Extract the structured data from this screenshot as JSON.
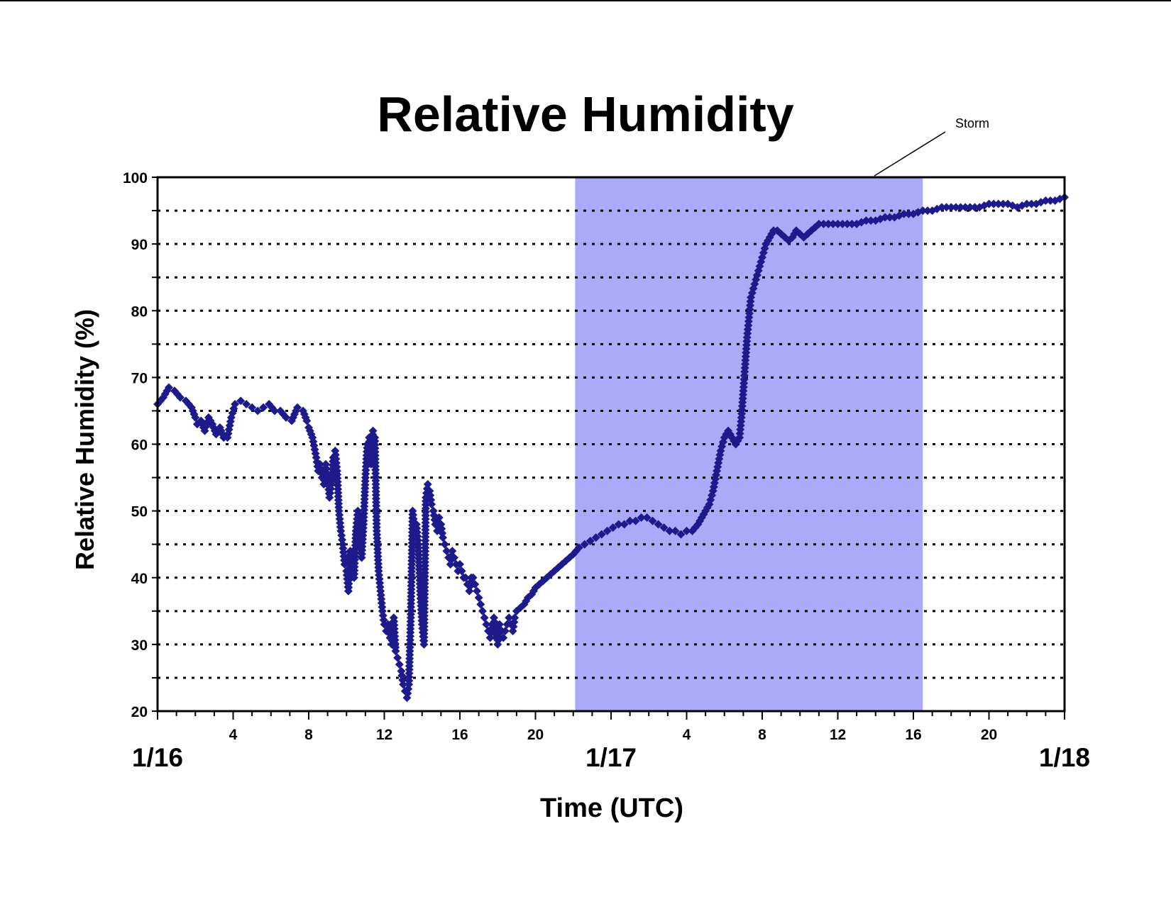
{
  "colors": {
    "series": "#1d1b8c",
    "storm_band": "#aaaaf8",
    "axes": "#000000",
    "grid": "#000000"
  },
  "chart_data": {
    "type": "scatter",
    "title": "Relative Humidity",
    "xlabel": "Time (UTC)",
    "ylabel": "Relative Humidity (%)",
    "x_unit": "hours since 1/16 00 UTC",
    "xlim": [
      0,
      48
    ],
    "ylim": [
      20,
      100
    ],
    "y_ticks": [
      20,
      30,
      40,
      50,
      60,
      70,
      80,
      90,
      100
    ],
    "y_tick_labels": [
      "20",
      "30",
      "40",
      "50",
      "60",
      "70",
      "80",
      "90",
      "100"
    ],
    "grid": "dotted horizontal lines every 5",
    "x_hour_ticks": [
      4,
      8,
      12,
      16,
      20,
      28,
      32,
      36,
      40,
      44
    ],
    "x_hour_labels": [
      "4",
      "8",
      "12",
      "16",
      "20",
      "4",
      "8",
      "12",
      "16",
      "20"
    ],
    "x_day_ticks": [
      0,
      24,
      48
    ],
    "x_day_labels": [
      "1/16",
      "1/17",
      "1/18"
    ],
    "shaded_region": {
      "label": "Storm",
      "x_start": 22.1,
      "x_end": 40.5
    },
    "series": [
      {
        "marker": "diamond",
        "points": [
          [
            0.0,
            66
          ],
          [
            0.3,
            67
          ],
          [
            0.6,
            68.5
          ],
          [
            0.9,
            68
          ],
          [
            1.2,
            67
          ],
          [
            1.5,
            66.5
          ],
          [
            1.8,
            65.5
          ],
          [
            2.0,
            64
          ],
          [
            2.1,
            63
          ],
          [
            2.3,
            63.5
          ],
          [
            2.5,
            62
          ],
          [
            2.7,
            64
          ],
          [
            2.9,
            63
          ],
          [
            3.1,
            61.5
          ],
          [
            3.3,
            62.5
          ],
          [
            3.5,
            61
          ],
          [
            3.7,
            61
          ],
          [
            3.9,
            64
          ],
          [
            4.1,
            66
          ],
          [
            4.4,
            66.5
          ],
          [
            4.7,
            66
          ],
          [
            5.0,
            65.5
          ],
          [
            5.3,
            65
          ],
          [
            5.6,
            65.5
          ],
          [
            5.9,
            66
          ],
          [
            6.2,
            65
          ],
          [
            6.5,
            65
          ],
          [
            6.8,
            64
          ],
          [
            7.1,
            63.5
          ],
          [
            7.4,
            65.5
          ],
          [
            7.7,
            65
          ],
          [
            7.9,
            63.5
          ],
          [
            8.0,
            62.5
          ],
          [
            8.2,
            61
          ],
          [
            8.4,
            58
          ],
          [
            8.5,
            56
          ],
          [
            8.6,
            57
          ],
          [
            8.7,
            55
          ],
          [
            8.8,
            54
          ],
          [
            8.9,
            57
          ],
          [
            9.0,
            55
          ],
          [
            9.1,
            52
          ],
          [
            9.2,
            54
          ],
          [
            9.3,
            58
          ],
          [
            9.4,
            59
          ],
          [
            9.5,
            56
          ],
          [
            9.6,
            50
          ],
          [
            9.7,
            47
          ],
          [
            9.8,
            45
          ],
          [
            9.9,
            42
          ],
          [
            10.0,
            41
          ],
          [
            10.1,
            38
          ],
          [
            10.2,
            44
          ],
          [
            10.3,
            42
          ],
          [
            10.4,
            40
          ],
          [
            10.5,
            47
          ],
          [
            10.6,
            50
          ],
          [
            10.7,
            45
          ],
          [
            10.8,
            43
          ],
          [
            10.9,
            48
          ],
          [
            11.0,
            55
          ],
          [
            11.1,
            60
          ],
          [
            11.2,
            61
          ],
          [
            11.3,
            57
          ],
          [
            11.4,
            62
          ],
          [
            11.5,
            61
          ],
          [
            11.6,
            47
          ],
          [
            11.7,
            41
          ],
          [
            11.8,
            38
          ],
          [
            11.9,
            35
          ],
          [
            12.0,
            33
          ],
          [
            12.1,
            32
          ],
          [
            12.2,
            33
          ],
          [
            12.3,
            31
          ],
          [
            12.4,
            30
          ],
          [
            12.5,
            34
          ],
          [
            12.6,
            29
          ],
          [
            12.7,
            28
          ],
          [
            12.8,
            27
          ],
          [
            12.9,
            26
          ],
          [
            13.0,
            24
          ],
          [
            13.1,
            23
          ],
          [
            13.2,
            22
          ],
          [
            13.3,
            24
          ],
          [
            13.4,
            34
          ],
          [
            13.5,
            50
          ],
          [
            13.6,
            47
          ],
          [
            13.7,
            48
          ],
          [
            13.8,
            45
          ],
          [
            13.9,
            38
          ],
          [
            14.0,
            33
          ],
          [
            14.1,
            30
          ],
          [
            14.2,
            52
          ],
          [
            14.3,
            54
          ],
          [
            14.4,
            53
          ],
          [
            14.5,
            51
          ],
          [
            14.6,
            50
          ],
          [
            14.7,
            48
          ],
          [
            14.8,
            47
          ],
          [
            14.9,
            49
          ],
          [
            15.0,
            48
          ],
          [
            15.1,
            46
          ],
          [
            15.2,
            45
          ],
          [
            15.3,
            44
          ],
          [
            15.4,
            43
          ],
          [
            15.5,
            42
          ],
          [
            15.6,
            44
          ],
          [
            15.7,
            43
          ],
          [
            15.8,
            42
          ],
          [
            15.9,
            41
          ],
          [
            16.0,
            42
          ],
          [
            16.1,
            41
          ],
          [
            16.2,
            40
          ],
          [
            16.3,
            40
          ],
          [
            16.4,
            39
          ],
          [
            16.5,
            38
          ],
          [
            16.6,
            40
          ],
          [
            16.7,
            40
          ],
          [
            16.8,
            39
          ],
          [
            16.9,
            38
          ],
          [
            17.0,
            37
          ],
          [
            17.1,
            36
          ],
          [
            17.2,
            35
          ],
          [
            17.3,
            34
          ],
          [
            17.4,
            33
          ],
          [
            17.5,
            32
          ],
          [
            17.6,
            31
          ],
          [
            17.7,
            33
          ],
          [
            17.8,
            34
          ],
          [
            17.9,
            31
          ],
          [
            18.0,
            30
          ],
          [
            18.1,
            33
          ],
          [
            18.2,
            32
          ],
          [
            18.3,
            31
          ],
          [
            18.4,
            32
          ],
          [
            18.5,
            33
          ],
          [
            18.6,
            34
          ],
          [
            18.7,
            33
          ],
          [
            18.8,
            32
          ],
          [
            18.9,
            34
          ],
          [
            19.0,
            35
          ],
          [
            19.2,
            35.5
          ],
          [
            19.4,
            36
          ],
          [
            19.6,
            37
          ],
          [
            19.8,
            37.5
          ],
          [
            20.0,
            38.5
          ],
          [
            20.2,
            39
          ],
          [
            20.4,
            39.5
          ],
          [
            20.6,
            40
          ],
          [
            20.8,
            40.5
          ],
          [
            21.0,
            41
          ],
          [
            21.2,
            41.5
          ],
          [
            21.4,
            42
          ],
          [
            21.6,
            42.5
          ],
          [
            21.8,
            43
          ],
          [
            22.0,
            43.5
          ],
          [
            22.3,
            44.5
          ],
          [
            22.6,
            45
          ],
          [
            22.9,
            45.5
          ],
          [
            23.2,
            46
          ],
          [
            23.5,
            46.5
          ],
          [
            23.8,
            47
          ],
          [
            24.1,
            47.5
          ],
          [
            24.4,
            48
          ],
          [
            24.7,
            48
          ],
          [
            25.0,
            48.5
          ],
          [
            25.3,
            48.5
          ],
          [
            25.6,
            49
          ],
          [
            25.9,
            49
          ],
          [
            26.2,
            48.5
          ],
          [
            26.5,
            48
          ],
          [
            26.8,
            47.5
          ],
          [
            27.1,
            47
          ],
          [
            27.4,
            47
          ],
          [
            27.7,
            46.5
          ],
          [
            28.0,
            47
          ],
          [
            28.3,
            47
          ],
          [
            28.6,
            48
          ],
          [
            28.8,
            49
          ],
          [
            29.0,
            50
          ],
          [
            29.2,
            51
          ],
          [
            29.4,
            53
          ],
          [
            29.6,
            56
          ],
          [
            29.8,
            59
          ],
          [
            30.0,
            61
          ],
          [
            30.2,
            62
          ],
          [
            30.4,
            61
          ],
          [
            30.6,
            60
          ],
          [
            30.8,
            61
          ],
          [
            30.9,
            64
          ],
          [
            31.0,
            68
          ],
          [
            31.1,
            72
          ],
          [
            31.2,
            76
          ],
          [
            31.3,
            79
          ],
          [
            31.4,
            82
          ],
          [
            31.6,
            84
          ],
          [
            31.8,
            86
          ],
          [
            32.0,
            88
          ],
          [
            32.2,
            90
          ],
          [
            32.4,
            91
          ],
          [
            32.6,
            92
          ],
          [
            32.8,
            92
          ],
          [
            33.0,
            91.5
          ],
          [
            33.2,
            91
          ],
          [
            33.4,
            90.5
          ],
          [
            33.6,
            91
          ],
          [
            33.8,
            92
          ],
          [
            34.0,
            91.5
          ],
          [
            34.2,
            91
          ],
          [
            34.4,
            91.5
          ],
          [
            34.6,
            92
          ],
          [
            34.8,
            92.5
          ],
          [
            35.0,
            93
          ],
          [
            35.5,
            93
          ],
          [
            36.0,
            93
          ],
          [
            36.5,
            93
          ],
          [
            37.0,
            93
          ],
          [
            37.5,
            93.5
          ],
          [
            38.0,
            93.5
          ],
          [
            38.5,
            94
          ],
          [
            39.0,
            94
          ],
          [
            39.5,
            94.5
          ],
          [
            40.0,
            94.5
          ],
          [
            40.5,
            95
          ],
          [
            41.0,
            95
          ],
          [
            41.5,
            95.5
          ],
          [
            42.0,
            95.5
          ],
          [
            42.5,
            95.5
          ],
          [
            43.0,
            95.5
          ],
          [
            43.5,
            95.5
          ],
          [
            44.0,
            96
          ],
          [
            44.5,
            96
          ],
          [
            45.0,
            96
          ],
          [
            45.5,
            95.5
          ],
          [
            46.0,
            96
          ],
          [
            46.5,
            96
          ],
          [
            47.0,
            96.5
          ],
          [
            47.5,
            96.5
          ],
          [
            48.0,
            97
          ]
        ]
      }
    ]
  }
}
